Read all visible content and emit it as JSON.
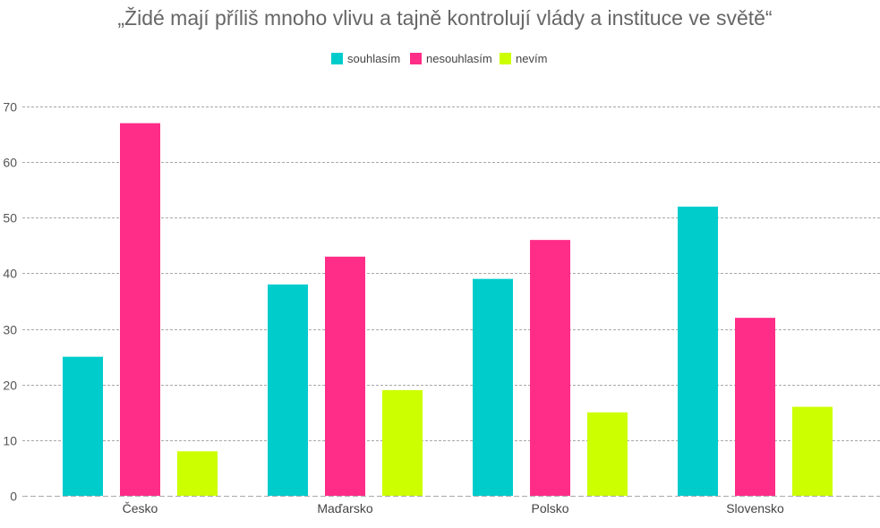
{
  "chart_data": {
    "type": "bar",
    "title": "„Židé mají příliš mnoho vlivu a tajně kontrolují vlády a instituce ve světě“",
    "xlabel": "",
    "ylabel": "",
    "categories": [
      "Česko",
      "Maďarsko",
      "Polsko",
      "Slovensko"
    ],
    "series": [
      {
        "name": "souhlasím",
        "color": "#00cccc",
        "values": [
          25,
          38,
          39,
          52
        ]
      },
      {
        "name": "nesouhlasím",
        "color": "#ff2d87",
        "values": [
          67,
          43,
          46,
          32
        ]
      },
      {
        "name": "nevím",
        "color": "#ccff00",
        "values": [
          8,
          19,
          15,
          16
        ]
      }
    ],
    "ylim": [
      0,
      70
    ],
    "yticks": [
      "0",
      "10",
      "20",
      "30",
      "40",
      "50",
      "60",
      "70"
    ],
    "grid": true,
    "legend_position": "top-center"
  }
}
